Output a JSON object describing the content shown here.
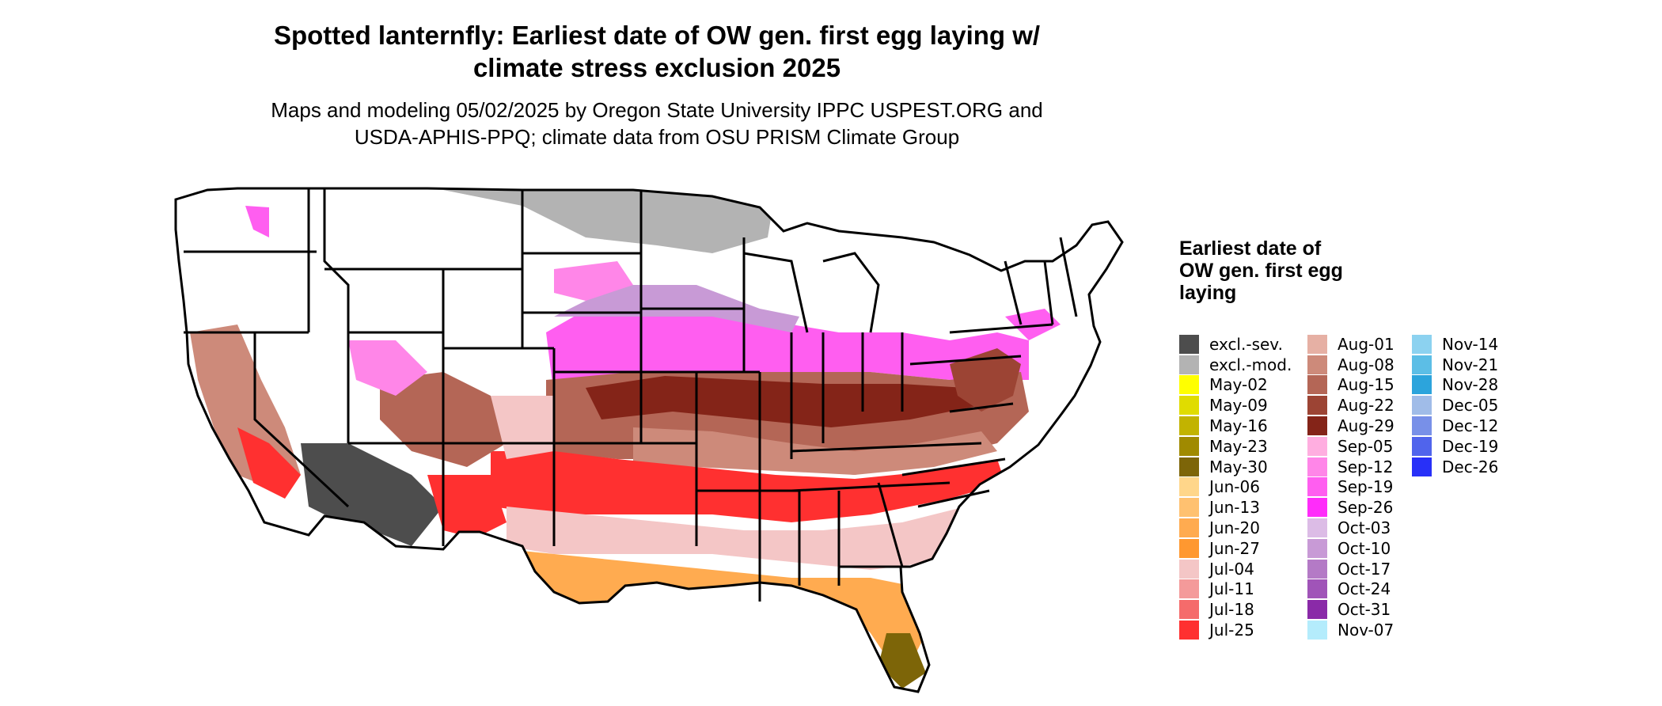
{
  "title_line1": "Spotted lanternfly: Earliest date of OW gen. first egg laying w/",
  "title_line2": "climate stress exclusion 2025",
  "subtitle_line1": "Maps and modeling 05/02/2025 by Oregon State University IPPC USPEST.ORG and",
  "subtitle_line2": "USDA-APHIS-PPQ; climate data from OSU PRISM Climate Group",
  "legend": {
    "title": "Earliest date of OW gen. first egg laying",
    "columns": [
      [
        {
          "label": "excl.-sev.",
          "color": "#4d4d4d"
        },
        {
          "label": "excl.-mod.",
          "color": "#b3b3b3"
        },
        {
          "label": "May-02",
          "color": "#ffff00"
        },
        {
          "label": "May-09",
          "color": "#e0dc00"
        },
        {
          "label": "May-16",
          "color": "#c2b300"
        },
        {
          "label": "May-23",
          "color": "#a08a00"
        },
        {
          "label": "May-30",
          "color": "#7d6508"
        },
        {
          "label": "Jun-06",
          "color": "#ffd68a"
        },
        {
          "label": "Jun-13",
          "color": "#ffc170"
        },
        {
          "label": "Jun-20",
          "color": "#ffab50"
        },
        {
          "label": "Jun-27",
          "color": "#ff9830"
        },
        {
          "label": "Jul-04",
          "color": "#f4c6c6"
        },
        {
          "label": "Jul-11",
          "color": "#f49a9a"
        },
        {
          "label": "Jul-18",
          "color": "#f56b6b"
        },
        {
          "label": "Jul-25",
          "color": "#ff3030"
        }
      ],
      [
        {
          "label": "Aug-01",
          "color": "#e6b0a4"
        },
        {
          "label": "Aug-08",
          "color": "#cd8a7a"
        },
        {
          "label": "Aug-15",
          "color": "#b46656"
        },
        {
          "label": "Aug-22",
          "color": "#9c4434"
        },
        {
          "label": "Aug-29",
          "color": "#842418"
        },
        {
          "label": "Sep-05",
          "color": "#ffaee0"
        },
        {
          "label": "Sep-12",
          "color": "#ff86e8"
        },
        {
          "label": "Sep-19",
          "color": "#ff5ef0"
        },
        {
          "label": "Sep-26",
          "color": "#ff2cfa"
        },
        {
          "label": "Oct-03",
          "color": "#dcbce6"
        },
        {
          "label": "Oct-10",
          "color": "#c89ad6"
        },
        {
          "label": "Oct-17",
          "color": "#b47ac6"
        },
        {
          "label": "Oct-24",
          "color": "#a054b8"
        },
        {
          "label": "Oct-31",
          "color": "#8a2aa8"
        },
        {
          "label": "Nov-07",
          "color": "#b4ecfc"
        }
      ],
      [
        {
          "label": "Nov-14",
          "color": "#8cd2f0"
        },
        {
          "label": "Nov-21",
          "color": "#5cbee6"
        },
        {
          "label": "Nov-28",
          "color": "#2ca4dc"
        },
        {
          "label": "Dec-05",
          "color": "#a0bce8"
        },
        {
          "label": "Dec-12",
          "color": "#7890e8"
        },
        {
          "label": "Dec-19",
          "color": "#5064ec"
        },
        {
          "label": "Dec-26",
          "color": "#2830f8"
        }
      ]
    ]
  },
  "map_colors": {
    "background_land": "#ffffff",
    "border": "#000000"
  }
}
